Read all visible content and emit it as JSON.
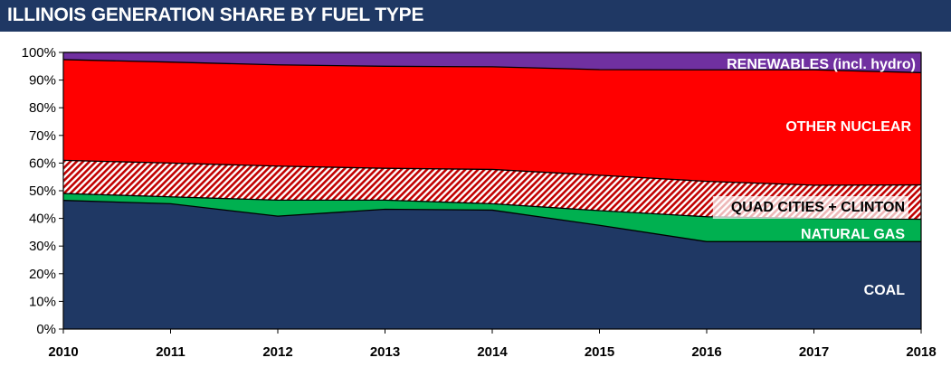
{
  "title": "ILLINOIS GENERATION SHARE BY FUEL TYPE",
  "colors": {
    "title_bg": "#1f3864",
    "coal": "#1f3864",
    "natural_gas": "#00b050",
    "quad_cities_clinton": "#c00000",
    "other_nuclear": "#ff0000",
    "renewables": "#7030a0"
  },
  "chart_data": {
    "type": "area",
    "stacked": true,
    "x": [
      2010,
      2011,
      2012,
      2013,
      2014,
      2015,
      2016,
      2017,
      2018
    ],
    "ylim": [
      0,
      100
    ],
    "yticks": [
      "0%",
      "10%",
      "20%",
      "30%",
      "40%",
      "50%",
      "60%",
      "70%",
      "80%",
      "90%",
      "100%"
    ],
    "xtick_labels": [
      "2010",
      "2011",
      "2012",
      "2013",
      "2014",
      "2015",
      "2016",
      "2017",
      "2018"
    ],
    "series": [
      {
        "name": "COAL",
        "key": "coal",
        "values": [
          46.5,
          45.3,
          40.8,
          43.3,
          43.0,
          37.5,
          31.6,
          31.6,
          31.6
        ]
      },
      {
        "name": "NATURAL GAS",
        "key": "natural_gas",
        "values": [
          2.5,
          2.5,
          5.8,
          3.3,
          2.3,
          5.3,
          9.0,
          8.4,
          8.1
        ]
      },
      {
        "name": "QUAD CITIES + CLINTON",
        "key": "quad_cities_clinton",
        "values": [
          12.0,
          12.2,
          12.3,
          11.5,
          12.4,
          12.8,
          12.8,
          12.0,
          12.4
        ]
      },
      {
        "name": "OTHER NUCLEAR",
        "key": "other_nuclear",
        "values": [
          36.4,
          36.5,
          36.6,
          36.9,
          37.1,
          38.2,
          40.3,
          41.7,
          40.6
        ]
      },
      {
        "name": "RENEWABLES (incl. hydro)",
        "key": "renewables",
        "values": [
          2.6,
          3.5,
          4.5,
          5.0,
          5.2,
          6.2,
          6.3,
          6.3,
          7.3
        ]
      }
    ],
    "grid": false,
    "legend": "inline labels on areas, right side"
  }
}
